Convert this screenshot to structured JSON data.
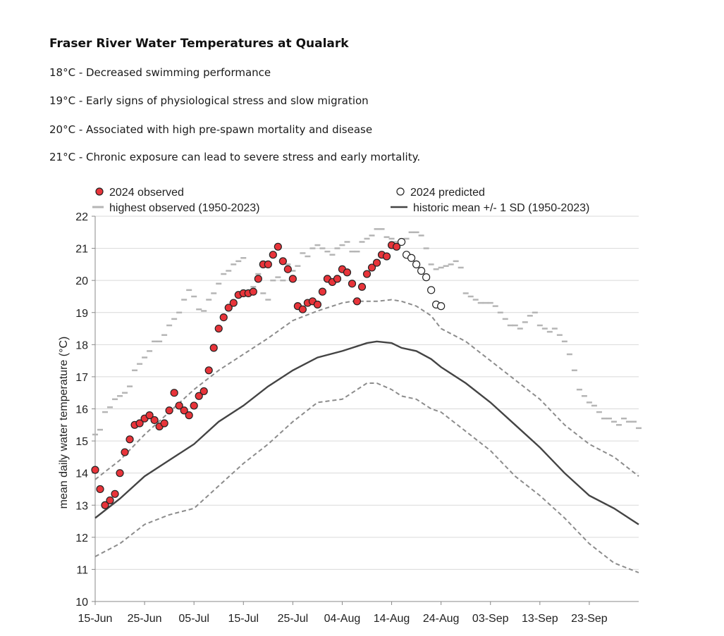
{
  "header": {
    "title": "Fraser River Water Temperatures at Qualark",
    "notes": [
      "18°C - Decreased swimming performance",
      "19°C - Early signs of physiological stress and slow migration",
      "20°C - Associated with high pre-spawn mortality and disease",
      "21°C - Chronic exposure can lead to severe stress and early mortality."
    ]
  },
  "colors": {
    "observed_fill": "#e8343a",
    "observed_stroke": "#222222",
    "highest": "#b5b5b5",
    "mean_line": "#444444",
    "sd_line": "#8c8c8c",
    "grid": "#d9d9d9",
    "axis": "#888888"
  },
  "chart_data": {
    "type": "line",
    "title": "",
    "xlabel": "",
    "ylabel": "mean daily water temperature (°C)",
    "ylim": [
      10,
      22
    ],
    "yticks": [
      10,
      11,
      12,
      13,
      14,
      15,
      16,
      17,
      18,
      19,
      20,
      21,
      22
    ],
    "xlim_day": [
      0,
      110
    ],
    "xticks": [
      {
        "day": 0,
        "label": "15-Jun"
      },
      {
        "day": 10,
        "label": "25-Jun"
      },
      {
        "day": 20,
        "label": "05-Jul"
      },
      {
        "day": 30,
        "label": "15-Jul"
      },
      {
        "day": 40,
        "label": "25-Jul"
      },
      {
        "day": 50,
        "label": "04-Aug"
      },
      {
        "day": 60,
        "label": "14-Aug"
      },
      {
        "day": 70,
        "label": "24-Aug"
      },
      {
        "day": 80,
        "label": "03-Sep"
      },
      {
        "day": 90,
        "label": "13-Sep"
      },
      {
        "day": 100,
        "label": "23-Sep"
      }
    ],
    "grid": true,
    "legend": {
      "position": "top",
      "observed": "2024 observed",
      "predicted": "2024 predicted",
      "highest": "highest observed (1950-2023)",
      "historic": "historic mean +/- 1 SD (1950-2023)"
    },
    "series": [
      {
        "name": "2024 observed",
        "x": [
          0,
          1,
          2,
          3,
          4,
          5,
          6,
          7,
          8,
          9,
          10,
          11,
          12,
          13,
          14,
          15,
          16,
          17,
          18,
          19,
          20,
          21,
          22,
          23,
          24,
          25,
          26,
          27,
          28,
          29,
          30,
          31,
          32,
          33,
          34,
          35,
          36,
          37,
          38,
          39,
          40,
          41,
          42,
          43,
          44,
          45,
          46,
          47,
          48,
          49,
          50,
          51,
          52,
          53,
          54,
          55,
          56,
          57,
          58,
          59,
          60,
          61
        ],
        "y": [
          14.1,
          13.5,
          13.0,
          13.15,
          13.35,
          14.0,
          14.65,
          15.05,
          15.5,
          15.55,
          15.7,
          15.8,
          15.65,
          15.45,
          15.55,
          15.95,
          16.5,
          16.1,
          15.95,
          15.8,
          16.1,
          16.4,
          16.55,
          17.2,
          17.9,
          18.5,
          18.85,
          19.15,
          19.3,
          19.55,
          19.6,
          19.6,
          19.65,
          20.05,
          20.5,
          20.5,
          20.8,
          21.05,
          20.6,
          20.35,
          20.05,
          19.2,
          19.1,
          19.3,
          19.35,
          19.25,
          19.65,
          20.05,
          19.95,
          20.05,
          20.35,
          20.25,
          19.9,
          19.35,
          19.8,
          20.2,
          20.4,
          20.55,
          20.8,
          20.75,
          21.1,
          21.05
        ]
      },
      {
        "name": "2024 predicted",
        "x": [
          62,
          63,
          64,
          65,
          66,
          67,
          68,
          69,
          70
        ],
        "y": [
          21.2,
          20.8,
          20.7,
          20.5,
          20.3,
          20.1,
          19.7,
          19.25,
          19.2
        ]
      },
      {
        "name": "highest observed (1950-2023)",
        "x": [
          0,
          1,
          2,
          3,
          4,
          5,
          6,
          7,
          8,
          9,
          10,
          11,
          12,
          13,
          14,
          15,
          16,
          17,
          18,
          19,
          20,
          21,
          22,
          23,
          24,
          25,
          26,
          27,
          28,
          29,
          30,
          31,
          32,
          33,
          34,
          35,
          36,
          37,
          38,
          39,
          40,
          41,
          42,
          43,
          44,
          45,
          46,
          47,
          48,
          49,
          50,
          51,
          52,
          53,
          54,
          55,
          56,
          57,
          58,
          59,
          60,
          61,
          62,
          63,
          64,
          65,
          66,
          67,
          68,
          69,
          70,
          71,
          72,
          73,
          74,
          75,
          76,
          77,
          78,
          79,
          80,
          81,
          82,
          83,
          84,
          85,
          86,
          87,
          88,
          89,
          90,
          91,
          92,
          93,
          94,
          95,
          96,
          97,
          98,
          99,
          100,
          101,
          102,
          103,
          104,
          105,
          106,
          107,
          108,
          109,
          110
        ],
        "y": [
          15.2,
          15.35,
          15.9,
          16.05,
          16.3,
          16.4,
          16.5,
          16.7,
          17.2,
          17.4,
          17.6,
          17.8,
          18.1,
          18.1,
          18.3,
          18.6,
          18.8,
          19.0,
          19.4,
          19.7,
          19.5,
          19.1,
          19.05,
          19.4,
          19.6,
          19.9,
          20.2,
          20.3,
          20.5,
          20.6,
          20.7,
          19.6,
          19.8,
          20.2,
          19.6,
          19.4,
          20.0,
          20.1,
          20.0,
          20.5,
          20.3,
          20.45,
          20.85,
          20.75,
          21.0,
          21.1,
          21.0,
          20.9,
          20.8,
          21.0,
          21.1,
          21.2,
          20.9,
          20.9,
          21.2,
          21.3,
          21.4,
          21.6,
          21.6,
          21.35,
          21.3,
          21.2,
          21.15,
          21.3,
          21.5,
          21.5,
          21.4,
          21.0,
          20.5,
          20.35,
          20.4,
          20.45,
          20.5,
          20.6,
          20.4,
          19.6,
          19.5,
          19.4,
          19.3,
          19.3,
          19.3,
          19.2,
          19.0,
          18.8,
          18.6,
          18.6,
          18.5,
          18.7,
          18.9,
          19.0,
          18.6,
          18.5,
          18.4,
          18.5,
          18.3,
          18.1,
          17.7,
          17.2,
          16.6,
          16.4,
          16.2,
          16.1,
          15.9,
          15.7,
          15.7,
          15.6,
          15.5,
          15.7,
          15.6,
          15.6,
          15.4
        ]
      },
      {
        "name": "historic mean",
        "x": [
          0,
          5,
          10,
          15,
          20,
          25,
          30,
          35,
          40,
          45,
          50,
          52,
          55,
          57,
          60,
          62,
          65,
          68,
          70,
          75,
          80,
          85,
          90,
          95,
          100,
          105,
          110
        ],
        "y": [
          12.6,
          13.2,
          13.9,
          14.4,
          14.9,
          15.6,
          16.1,
          16.7,
          17.2,
          17.6,
          17.8,
          17.9,
          18.05,
          18.1,
          18.05,
          17.9,
          17.8,
          17.55,
          17.3,
          16.8,
          16.2,
          15.5,
          14.8,
          14.0,
          13.3,
          12.9,
          12.4
        ]
      },
      {
        "name": "historic mean + 1 SD",
        "x": [
          0,
          5,
          10,
          15,
          20,
          25,
          30,
          35,
          40,
          45,
          50,
          52,
          55,
          57,
          60,
          62,
          65,
          68,
          70,
          75,
          80,
          85,
          90,
          95,
          100,
          105,
          110
        ],
        "y": [
          13.8,
          14.4,
          15.2,
          15.9,
          16.6,
          17.2,
          17.7,
          18.2,
          18.75,
          19.05,
          19.3,
          19.35,
          19.35,
          19.35,
          19.4,
          19.35,
          19.2,
          18.9,
          18.5,
          18.1,
          17.5,
          16.9,
          16.3,
          15.5,
          14.9,
          14.5,
          13.9
        ]
      },
      {
        "name": "historic mean - 1 SD",
        "x": [
          0,
          5,
          10,
          15,
          20,
          25,
          30,
          35,
          40,
          45,
          50,
          52,
          55,
          57,
          60,
          62,
          65,
          68,
          70,
          75,
          80,
          85,
          90,
          95,
          100,
          105,
          110
        ],
        "y": [
          11.4,
          11.8,
          12.4,
          12.7,
          12.9,
          13.6,
          14.3,
          14.9,
          15.6,
          16.2,
          16.3,
          16.5,
          16.8,
          16.8,
          16.6,
          16.4,
          16.3,
          16.0,
          15.9,
          15.3,
          14.7,
          13.9,
          13.3,
          12.6,
          11.8,
          11.2,
          10.9
        ]
      }
    ]
  }
}
